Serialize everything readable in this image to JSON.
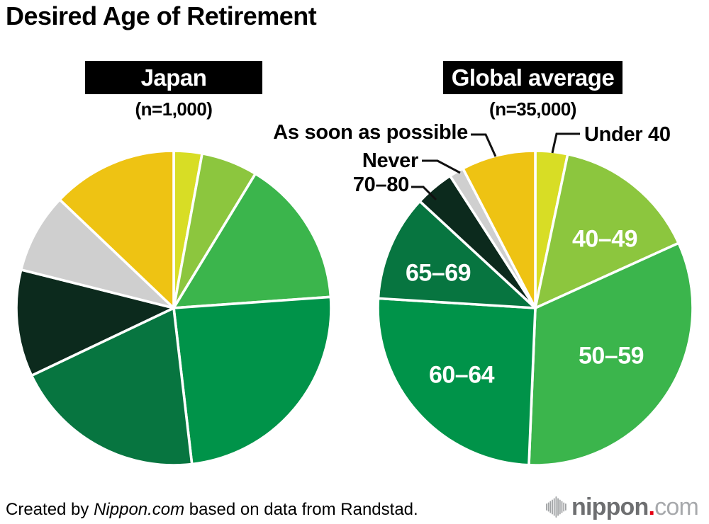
{
  "title": "Desired Age of Retirement",
  "chart_data": [
    {
      "type": "pie",
      "title": "Japan",
      "subtitle": "(n=1,000)",
      "start_angle_deg": 0,
      "direction": "clockwise",
      "categories": [
        "Under 40",
        "40–49",
        "50–59",
        "60–64",
        "65–69",
        "70–80",
        "Never",
        "As soon as possible"
      ],
      "values": [
        2.9,
        5.8,
        15.2,
        24.3,
        19.8,
        11.0,
        8.2,
        12.9
      ],
      "colors": [
        "#D8DD25",
        "#8CC63E",
        "#3BB54C",
        "#009349",
        "#077540",
        "#0C2A1D",
        "#CFCFCF",
        "#EEC313"
      ],
      "slice_labels_shown": []
    },
    {
      "type": "pie",
      "title": "Global average",
      "subtitle": "(n=35,000)",
      "start_angle_deg": 0,
      "direction": "clockwise",
      "categories": [
        "Under 40",
        "40–49",
        "50–59",
        "60–64",
        "65–69",
        "70–80",
        "Never",
        "As soon as possible"
      ],
      "values": [
        3.3,
        14.9,
        32.4,
        25.3,
        10.9,
        4.0,
        1.5,
        7.6
      ],
      "colors": [
        "#D8DD25",
        "#8CC63E",
        "#3BB54C",
        "#009349",
        "#077540",
        "#0C2A1D",
        "#CFCFCF",
        "#EEC313"
      ],
      "slice_labels_shown": [
        "40–49",
        "50–59",
        "60–64",
        "65–69"
      ],
      "callout_labels_shown": [
        "As soon as possible",
        "Never",
        "70–80",
        "Under 40"
      ]
    }
  ],
  "footer": {
    "prefix": "Created by ",
    "brand": "Nippon.com",
    "suffix": " based on data from Randstad."
  },
  "logo": {
    "word": "nippon",
    "dot": ".",
    "tld": "com",
    "word_color": "#6E6F71",
    "tld_color": "#A7A9AC",
    "dot_color": "#E60012"
  }
}
